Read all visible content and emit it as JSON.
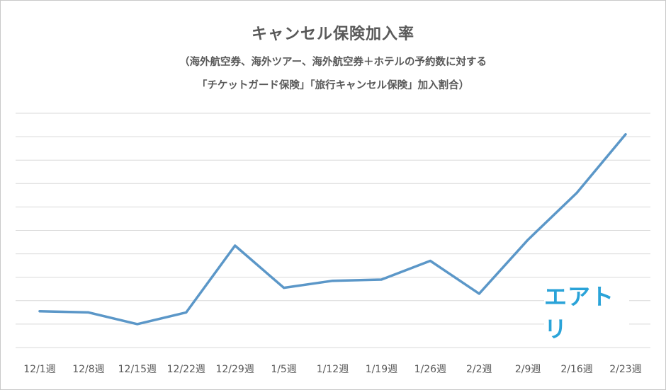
{
  "chart_data": {
    "type": "line",
    "title": "キャンセル保険加入率",
    "subtitle": [
      "（海外航空券、海外ツアー、海外航空券＋ホテルの予約数に対する",
      "「チケットガード保険」「旅行キャンセル保険」加入割合）"
    ],
    "categories": [
      "12/1週",
      "12/8週",
      "12/15週",
      "12/22週",
      "12/29週",
      "1/5週",
      "1/12週",
      "1/19週",
      "1/26週",
      "2/2週",
      "2/9週",
      "2/16週",
      "2/23週"
    ],
    "series": [
      {
        "values": [
          1.55,
          1.5,
          1.0,
          1.5,
          4.35,
          2.55,
          2.85,
          2.9,
          3.7,
          2.3,
          4.6,
          6.6,
          9.1
        ]
      }
    ],
    "ylim": [
      0,
      10
    ],
    "y_gridlines": 11,
    "y_tick_labels": false,
    "grid": true,
    "line_color": "#5b97c8",
    "grid_color": "#d9d9d9"
  },
  "logo": {
    "text": "エアトリ",
    "color": "#2aa3d8"
  }
}
